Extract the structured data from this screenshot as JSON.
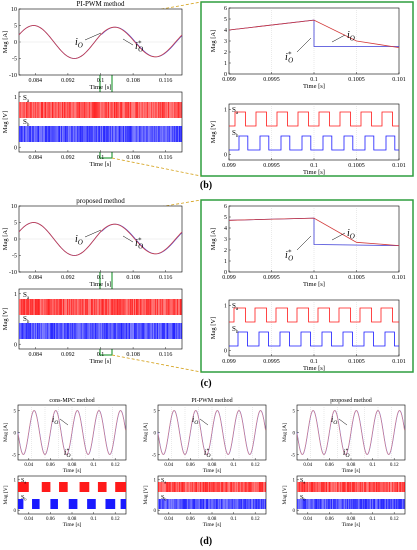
{
  "panel_labels": {
    "b": "(b)",
    "c": "(c)",
    "d": "(d)"
  },
  "colors": {
    "reference": "#3b3bd6",
    "measured": "#d23a3a",
    "zoom_frame": "#2e9e3f",
    "sa_color": "#ff1a1a",
    "sb_color": "#1a1aff",
    "highlight": "#ffb0b0"
  },
  "chart_data": [
    {
      "id": "b_current",
      "type": "line",
      "title": "PI-PWM method",
      "xlabel": "Time [s]",
      "ylabel": "Mag [A]",
      "xlim": [
        0.08,
        0.12
      ],
      "ylim": [
        -10,
        10
      ],
      "xticks": [
        "0.084",
        "0.092",
        "0.1",
        "0.108",
        "0.116"
      ],
      "yticks": [
        "-10",
        "-5",
        "0",
        "5",
        "10"
      ],
      "annotations": [
        "i_O",
        "i_O*"
      ],
      "series": [
        {
          "name": "i_O*",
          "x": [
            0.08,
            0.084,
            0.088,
            0.092,
            0.096,
            0.1,
            0.1001,
            0.104,
            0.108,
            0.112,
            0.116,
            0.12
          ],
          "values": [
            2.2,
            5,
            2.5,
            -4.8,
            -1.5,
            5,
            2.5,
            4.5,
            -2,
            -4.5,
            1,
            4.8
          ]
        },
        {
          "name": "i_O",
          "x": [
            0.08,
            0.084,
            0.088,
            0.092,
            0.096,
            0.1,
            0.1003,
            0.104,
            0.108,
            0.112,
            0.116,
            0.12
          ],
          "values": [
            2.2,
            5,
            2.5,
            -4.8,
            -1.5,
            5,
            3,
            4.5,
            -2,
            -4.5,
            1,
            4.8
          ]
        }
      ]
    },
    {
      "id": "b_switch",
      "type": "line",
      "xlabel": "Time [s]",
      "ylabel": "Mag [V]",
      "xlim": [
        0.08,
        0.12
      ],
      "ylim": [
        0,
        1
      ],
      "xticks": [
        "0.084",
        "0.092",
        "0.1",
        "0.108",
        "0.116"
      ],
      "yticks": [
        "0",
        "1"
      ],
      "series": [
        {
          "name": "Sa"
        },
        {
          "name": "Sb"
        }
      ]
    },
    {
      "id": "b_zoom_current",
      "type": "line",
      "xlabel": "Time [s]",
      "ylabel": "Mag [A]",
      "xlim": [
        0.099,
        0.101
      ],
      "ylim": [
        0,
        6
      ],
      "xticks": [
        "0.099",
        "0.0995",
        "0.1",
        "0.1005",
        "0.101"
      ],
      "yticks": [
        "0",
        "1",
        "2",
        "3",
        "4",
        "5",
        "6"
      ],
      "annotations": [
        "i_O",
        "i_O*"
      ],
      "series": [
        {
          "name": "i_O*",
          "x": [
            0.099,
            0.1,
            0.1,
            0.101
          ],
          "values": [
            4.0,
            4.9,
            2.5,
            2.5
          ]
        },
        {
          "name": "i_O",
          "x": [
            0.099,
            0.1,
            0.1005,
            0.101
          ],
          "values": [
            4.0,
            4.9,
            3.0,
            2.4
          ]
        }
      ]
    },
    {
      "id": "b_zoom_switch",
      "type": "line",
      "xlabel": "Time [s]",
      "ylabel": "Mag [V]",
      "xlim": [
        0.099,
        0.101
      ],
      "ylim": [
        0,
        1
      ],
      "xticks": [
        "0.099",
        "0.0995",
        "0.1",
        "0.1005",
        "0.101"
      ],
      "yticks": [
        "0",
        "1"
      ],
      "series": [
        {
          "name": "Sa"
        },
        {
          "name": "Sb"
        }
      ]
    },
    {
      "id": "c_current",
      "type": "line",
      "title": "proposed method",
      "xlabel": "Time [s]",
      "ylabel": "Mag [A]",
      "xlim": [
        0.08,
        0.12
      ],
      "ylim": [
        -10,
        10
      ],
      "xticks": [
        "0.084",
        "0.092",
        "0.1",
        "0.108",
        "0.116"
      ],
      "yticks": [
        "-10",
        "-5",
        "0",
        "5",
        "10"
      ],
      "annotations": [
        "i_O",
        "i_O*"
      ],
      "series": [
        {
          "name": "i_O*",
          "x": [
            0.08,
            0.084,
            0.088,
            0.092,
            0.096,
            0.1,
            0.1001,
            0.104,
            0.108,
            0.112,
            0.116,
            0.12
          ],
          "values": [
            2.2,
            5,
            2.5,
            -4.8,
            -1.5,
            5,
            2.5,
            4.5,
            -2,
            -4.5,
            1,
            4.8
          ]
        },
        {
          "name": "i_O",
          "x": [
            0.08,
            0.084,
            0.088,
            0.092,
            0.096,
            0.1,
            0.1003,
            0.104,
            0.108,
            0.112,
            0.116,
            0.12
          ],
          "values": [
            2.2,
            5,
            2.5,
            -4.8,
            -1.5,
            5,
            2.8,
            4.5,
            -2,
            -4.5,
            1,
            4.8
          ]
        }
      ]
    },
    {
      "id": "c_switch",
      "type": "line",
      "xlabel": "Time [s]",
      "ylabel": "Mag [V]",
      "xlim": [
        0.08,
        0.12
      ],
      "ylim": [
        0,
        1
      ],
      "xticks": [
        "0.084",
        "0.092",
        "0.1",
        "0.108",
        "0.116"
      ],
      "yticks": [
        "0",
        "1"
      ],
      "series": [
        {
          "name": "Sa"
        },
        {
          "name": "Sb"
        }
      ]
    },
    {
      "id": "c_zoom_current",
      "type": "line",
      "xlabel": "Time [s]",
      "ylabel": "Mag [A]",
      "xlim": [
        0.099,
        0.101
      ],
      "ylim": [
        0,
        6
      ],
      "xticks": [
        "0.099",
        "0.0995",
        "0.1",
        "0.1005",
        "0.101"
      ],
      "yticks": [
        "0",
        "1",
        "2",
        "3",
        "4",
        "5",
        "6"
      ],
      "annotations": [
        "i_O",
        "i_O*"
      ],
      "series": [
        {
          "name": "i_O*",
          "x": [
            0.099,
            0.1,
            0.1,
            0.101
          ],
          "values": [
            4.7,
            4.9,
            2.5,
            2.4
          ]
        },
        {
          "name": "i_O",
          "x": [
            0.099,
            0.1,
            0.1005,
            0.101
          ],
          "values": [
            4.7,
            4.9,
            2.7,
            2.4
          ]
        }
      ]
    },
    {
      "id": "c_zoom_switch",
      "type": "line",
      "xlabel": "Time [s]",
      "ylabel": "Mag [V]",
      "xlim": [
        0.099,
        0.101
      ],
      "ylim": [
        0,
        1
      ],
      "xticks": [
        "0.099",
        "0.0995",
        "0.1",
        "0.1005",
        "0.101"
      ],
      "yticks": [
        "0",
        "1"
      ],
      "series": [
        {
          "name": "Sa"
        },
        {
          "name": "Sb"
        }
      ]
    },
    {
      "id": "d_cons_mpc_current",
      "type": "line",
      "title": "cons-MPC method",
      "xlabel": "Time [s]",
      "ylabel": "Mag [A]",
      "xlim": [
        0.03,
        0.13
      ],
      "ylim": [
        -5,
        5
      ],
      "xticks": [
        "0.04",
        "0.06",
        "0.08",
        "0.1",
        "0.12"
      ],
      "yticks": [
        "-5",
        "0",
        "5"
      ],
      "annotations": [
        "i_O",
        "i_O*"
      ],
      "frequency_hz": 50,
      "amplitude": 4
    },
    {
      "id": "d_cons_mpc_switch",
      "type": "line",
      "xlabel": "Time [s]",
      "ylabel": "Mag [V]",
      "xlim": [
        0.03,
        0.13
      ],
      "ylim": [
        0,
        1
      ],
      "xticks": [
        "0.04",
        "0.06",
        "0.08",
        "0.1",
        "0.12"
      ],
      "yticks": [
        "0",
        "1"
      ],
      "series": [
        {
          "name": "Sa"
        },
        {
          "name": "Sb"
        }
      ]
    },
    {
      "id": "d_pi_pwm_current",
      "type": "line",
      "title": "PI-PWM method",
      "xlabel": "Time [s]",
      "ylabel": "Mag [A]",
      "xlim": [
        0.03,
        0.13
      ],
      "ylim": [
        -5,
        5
      ],
      "xticks": [
        "0.04",
        "0.06",
        "0.08",
        "0.1",
        "0.12"
      ],
      "yticks": [
        "-5",
        "0",
        "5"
      ],
      "annotations": [
        "i_O",
        "i_O*"
      ],
      "frequency_hz": 50,
      "amplitude": 4
    },
    {
      "id": "d_pi_pwm_switch",
      "type": "line",
      "xlabel": "Time [s]",
      "ylabel": "Mag [V]",
      "xlim": [
        0.03,
        0.13
      ],
      "ylim": [
        0,
        1
      ],
      "xticks": [
        "0.04",
        "0.06",
        "0.08",
        "0.1",
        "0.12"
      ],
      "yticks": [
        "0",
        "1"
      ],
      "series": [
        {
          "name": "Sa"
        },
        {
          "name": "Sb"
        }
      ]
    },
    {
      "id": "d_proposed_current",
      "type": "line",
      "title": "proposed method",
      "xlabel": "Time [s]",
      "ylabel": "Mag [A]",
      "xlim": [
        0.03,
        0.13
      ],
      "ylim": [
        -5,
        5
      ],
      "xticks": [
        "0.04",
        "0.06",
        "0.08",
        "0.1",
        "0.12"
      ],
      "yticks": [
        "-5",
        "0",
        "5"
      ],
      "annotations": [
        "i_O",
        "i_O*"
      ],
      "frequency_hz": 50,
      "amplitude": 4
    },
    {
      "id": "d_proposed_switch",
      "type": "line",
      "xlabel": "Time [s]",
      "ylabel": "Mag [V]",
      "xlim": [
        0.03,
        0.13
      ],
      "ylim": [
        0,
        1
      ],
      "xticks": [
        "0.04",
        "0.06",
        "0.08",
        "0.1",
        "0.12"
      ],
      "yticks": [
        "0",
        "1"
      ],
      "series": [
        {
          "name": "Sa"
        },
        {
          "name": "Sb"
        }
      ]
    }
  ]
}
